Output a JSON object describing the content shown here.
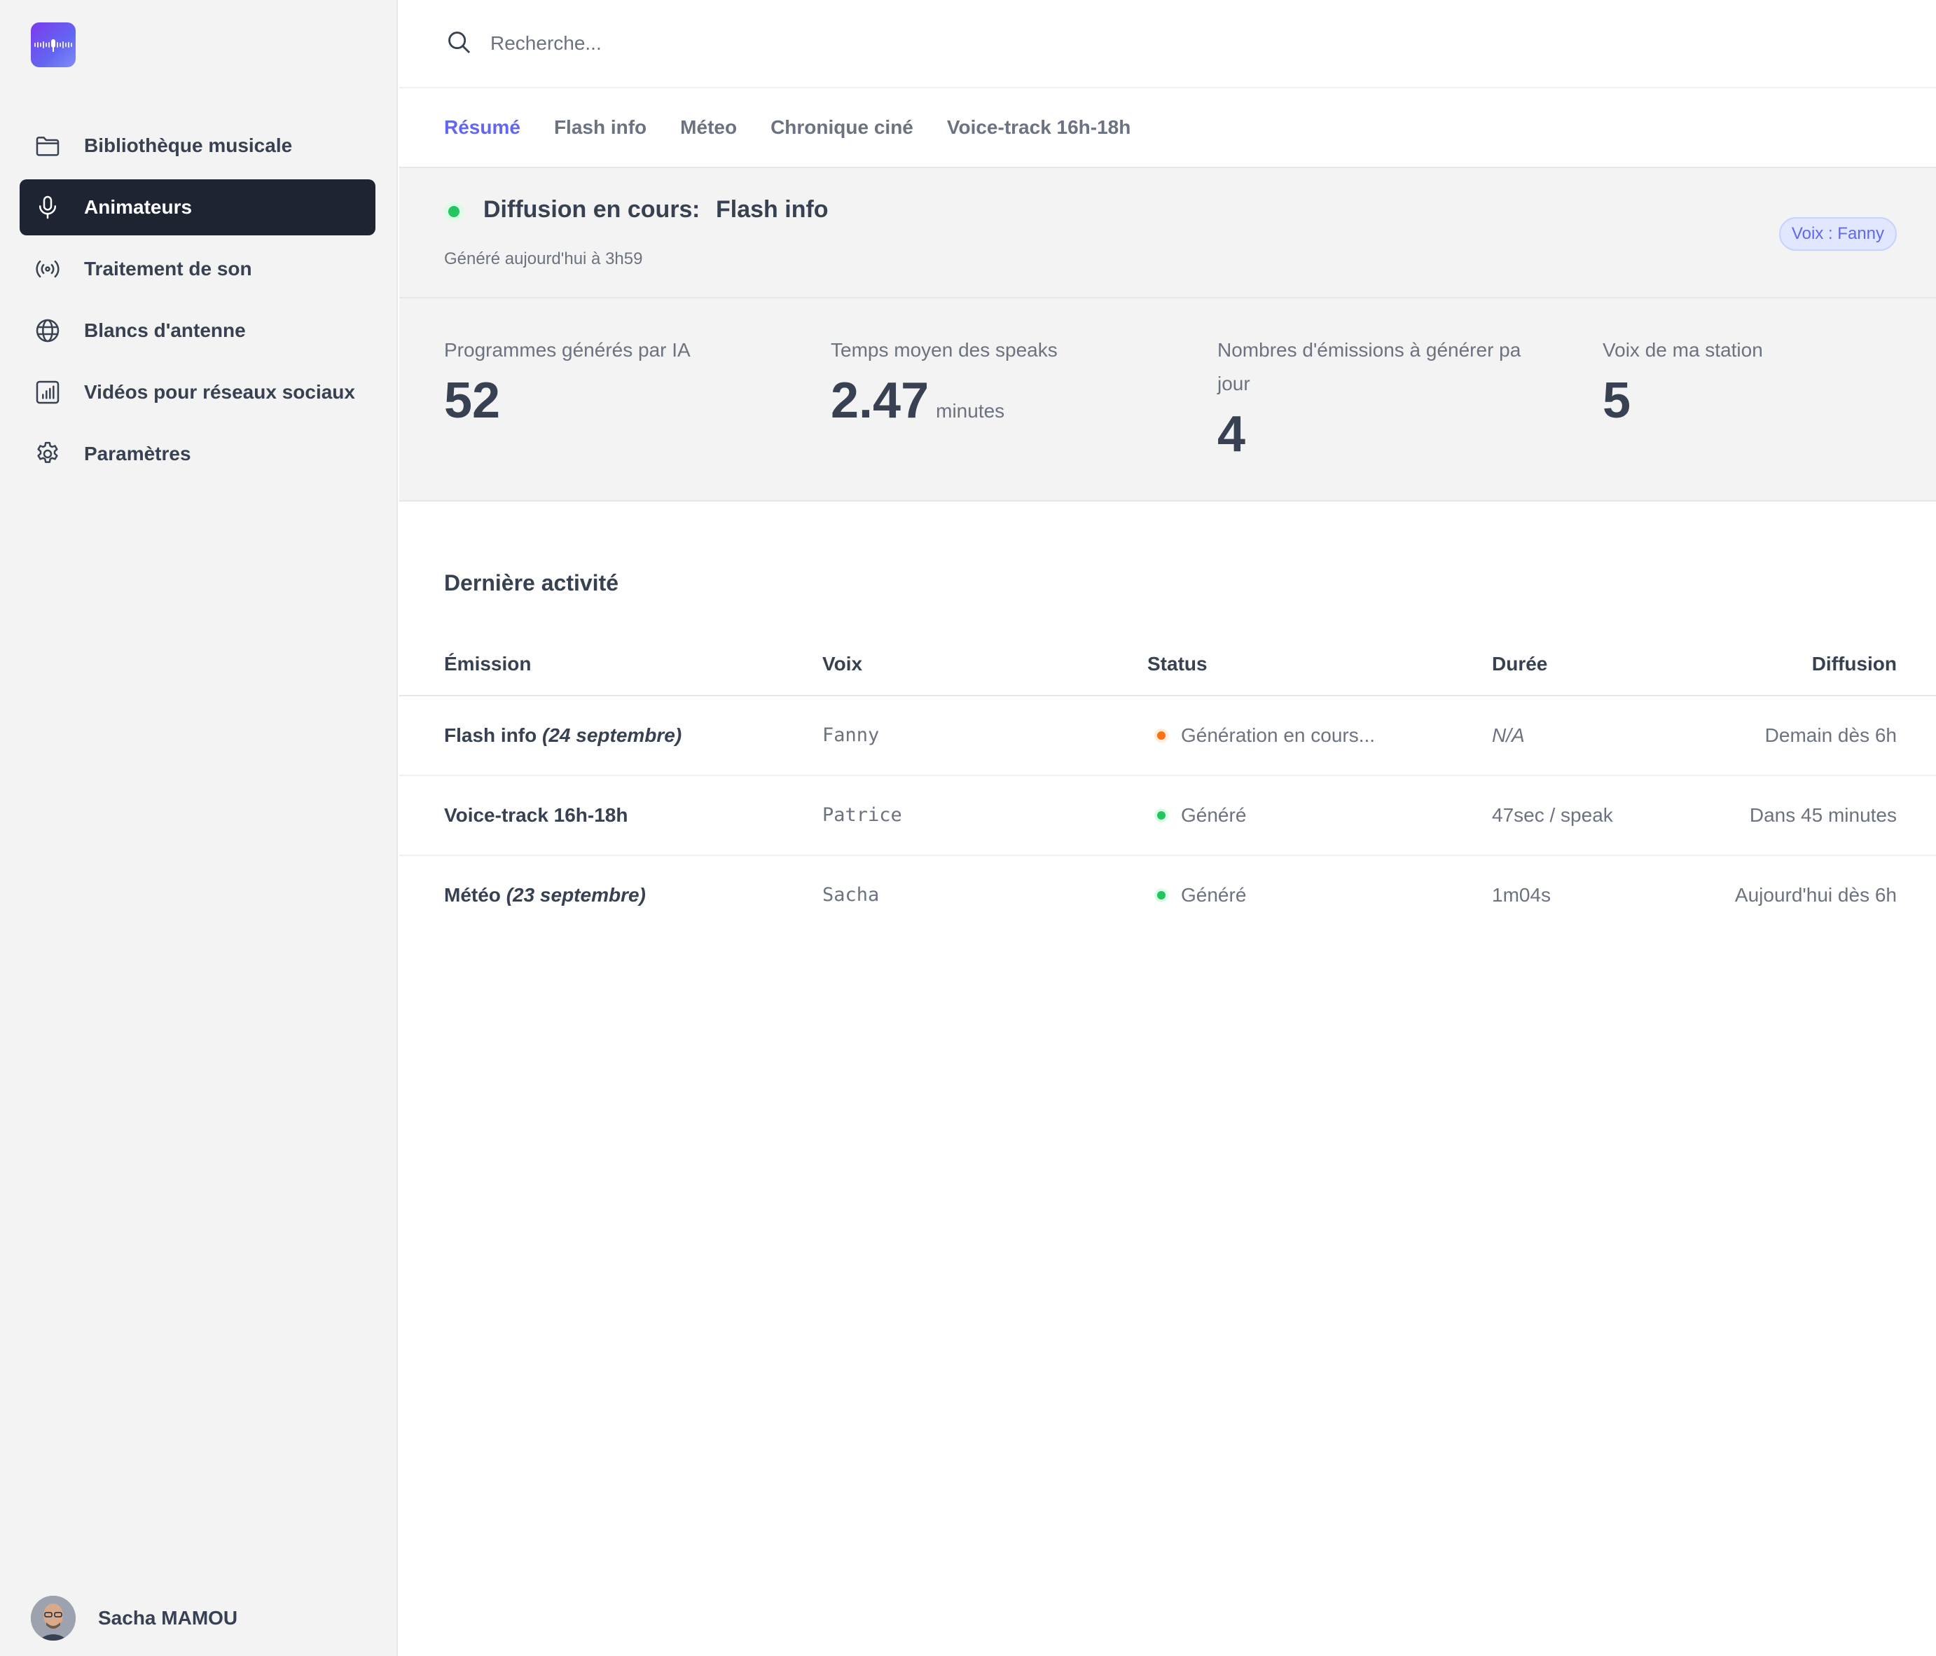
{
  "sidebar": {
    "items": [
      {
        "label": "Bibliothèque musicale",
        "icon": "folder-icon"
      },
      {
        "label": "Animateurs",
        "icon": "microphone-icon",
        "active": true
      },
      {
        "label": "Traitement de son",
        "icon": "broadcast-icon"
      },
      {
        "label": "Blancs d'antenne",
        "icon": "globe-icon"
      },
      {
        "label": "Vidéos pour réseaux sociaux",
        "icon": "bar-chart-icon"
      },
      {
        "label": "Paramètres",
        "icon": "gear-icon"
      }
    ],
    "user": {
      "name": "Sacha MAMOU"
    }
  },
  "search": {
    "placeholder": "Recherche..."
  },
  "tabs": [
    {
      "label": "Résumé",
      "active": true
    },
    {
      "label": "Flash info"
    },
    {
      "label": "Méteo"
    },
    {
      "label": "Chronique ciné"
    },
    {
      "label": "Voice-track 16h-18h"
    }
  ],
  "status": {
    "title": "Diffusion en cours",
    "separator": ":",
    "program": "Flash info",
    "generated": "Généré aujourd'hui à 3h59",
    "voice_badge": "Voix : Fanny",
    "dot_color": "#22c55e"
  },
  "stats": [
    {
      "label": "Programmes générés par IA",
      "value": "52",
      "unit": ""
    },
    {
      "label": "Temps moyen des speaks",
      "value": "2.47",
      "unit": "minutes"
    },
    {
      "label": "Nombres d'émissions à générer pa jour",
      "value": "4",
      "unit": ""
    },
    {
      "label": "Voix de ma station",
      "value": "5",
      "unit": ""
    }
  ],
  "activity": {
    "title": "Dernière activité",
    "columns": {
      "emission": "Émission",
      "voix": "Voix",
      "status": "Status",
      "duree": "Durée",
      "diffusion": "Diffusion"
    },
    "rows": [
      {
        "emission": "Flash info",
        "emission_date": "(24 septembre)",
        "voix": "Fanny",
        "status": "Génération en cours...",
        "status_color": "#f97316",
        "duree": "N/A",
        "diffusion": "Demain dès 6h"
      },
      {
        "emission": "Voice-track 16h-18h",
        "emission_date": "",
        "voix": "Patrice",
        "status": "Généré",
        "status_color": "#22c55e",
        "duree": "47sec / speak",
        "diffusion": "Dans 45 minutes"
      },
      {
        "emission": "Météo",
        "emission_date": "(23 septembre)",
        "voix": "Sacha",
        "status": "Généré",
        "status_color": "#22c55e",
        "duree": "1m04s",
        "diffusion": "Aujourd'hui dès 6h"
      }
    ]
  },
  "colors": {
    "accent": "#6366f1",
    "active_nav": "#1f2433",
    "success": "#22c55e",
    "pending": "#f97316"
  }
}
